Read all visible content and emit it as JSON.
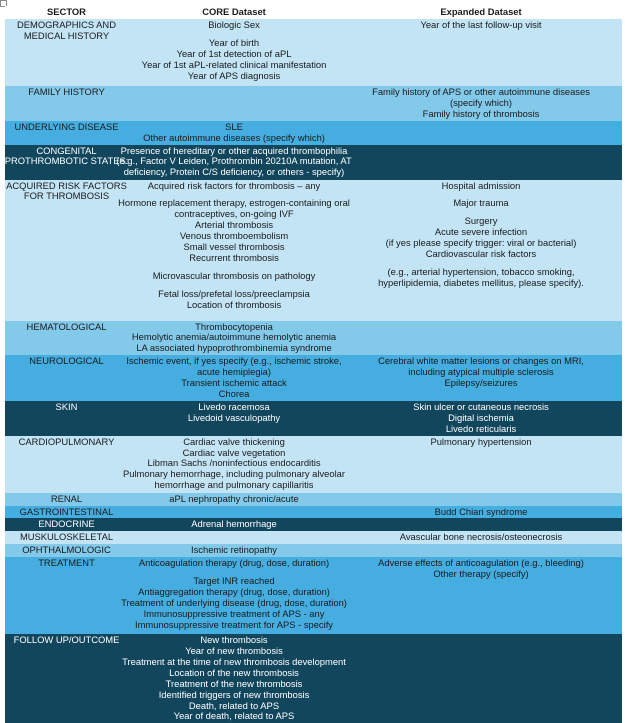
{
  "header": {
    "sector": "SECTOR",
    "core": "CORE Dataset",
    "expanded": "Expanded Dataset"
  },
  "colors": {
    "light": "#c2e4f5",
    "medium": "#82c9ea",
    "bright": "#45ade0",
    "dark": "#11465d"
  },
  "rows": [
    {
      "tone": "light",
      "sector": [
        "DEMOGRAPHICS AND",
        "MEDICAL HISTORY"
      ],
      "core": [
        [
          "Biologic Sex"
        ],
        [
          "Year of birth",
          "Year of 1st detection of aPL",
          "Year of 1st aPL-related clinical manifestation",
          "Year of APS diagnosis"
        ]
      ],
      "expanded": [
        [
          "Year of the last follow-up visit"
        ]
      ]
    },
    {
      "tone": "medium",
      "sector": [
        "FAMILY HISTORY"
      ],
      "core": [],
      "expanded": [
        [
          "Family history of APS or other autoimmune diseases",
          "(specify which)",
          "Family history of thrombosis"
        ]
      ]
    },
    {
      "tone": "bright",
      "sector": [
        "UNDERLYING DISEASE"
      ],
      "core": [
        [
          "SLE",
          "Other autoimmune diseases (specify which)"
        ]
      ],
      "expanded": []
    },
    {
      "tone": "dark",
      "sector": [
        "CONGENITAL",
        "PROTHROMBOTIC STATES:"
      ],
      "core": [
        [
          "Presence of hereditary or other acquired thrombophilia",
          "(e.g., Factor V Leiden, Prothrombin 20210A mutation, AT",
          "deficiency, Protein C/S deficiency, or others - specify)"
        ]
      ],
      "expanded": []
    },
    {
      "tone": "light",
      "sector": [
        "ACQUIRED RISK FACTORS",
        "FOR THROMBOSIS"
      ],
      "core": [
        [
          "Acquired risk factors for thrombosis – any"
        ],
        [
          "Hormone replacement therapy, estrogen-containing oral",
          "contraceptives, on-going IVF",
          "Arterial thrombosis",
          "Venous thromboembolism",
          "Small vessel thrombosis",
          "Recurrent thrombosis"
        ],
        [
          "Microvascular thrombosis on pathology"
        ],
        [
          "Fetal loss/prefetal loss/preeclampsia",
          "Location of thrombosis"
        ]
      ],
      "expanded": [
        [
          "Hospital admission"
        ],
        [
          "Major trauma"
        ],
        [
          "Surgery",
          "Acute severe infection",
          "(if yes please specify trigger: viral or bacterial)",
          "Cardiovascular risk factors"
        ],
        [
          "(e.g., arterial hypertension, tobacco smoking,",
          "hyperlipidemia, diabetes mellitus, please specify)."
        ]
      ]
    },
    {
      "tone": "medium",
      "sector": [
        "HEMATOLOGICAL"
      ],
      "core": [
        [
          "Thrombocytopenia",
          "Hemolytic anemia/autoimmune hemolytic anemia",
          "LA associated hypoprothrombinemia syndrome"
        ]
      ],
      "expanded": []
    },
    {
      "tone": "bright",
      "sector": [
        "NEUROLOGICAL"
      ],
      "core": [
        [
          "Ischemic event, if yes specify (e.g., ischemic stroke,",
          "acute hemiplegia)",
          "Transient ischemic attack",
          "Chorea"
        ]
      ],
      "expanded": [
        [
          "Cerebral white matter lesions or changes on MRI,",
          "including atypical multiple sclerosis",
          "Epilepsy/seizures"
        ]
      ]
    },
    {
      "tone": "dark",
      "sector": [
        "SKIN"
      ],
      "core": [
        [
          "Livedo racemosa",
          "Livedoid vasculopathy"
        ]
      ],
      "expanded": [
        [
          "Skin ulcer or cutaneous necrosis",
          "Digital ischemia",
          "Livedo reticularis"
        ]
      ]
    },
    {
      "tone": "light",
      "sector": [
        "CARDIOPULMONARY"
      ],
      "core": [
        [
          "Cardiac valve thickening",
          "Cardiac valve vegetation",
          "Libman Sachs /noninfectious endocarditis",
          "Pulmonary hemorrhage, including pulmonary alveolar",
          "hemorrhage and pulmonary capillaritis"
        ]
      ],
      "expanded": [
        [
          "Pulmonary hypertension"
        ]
      ]
    },
    {
      "tone": "medium",
      "sector": [
        "RENAL"
      ],
      "core": [
        [
          "aPL nephropathy chronic/acute"
        ]
      ],
      "expanded": []
    },
    {
      "tone": "bright",
      "sector": [
        "GASTROINTESTINAL"
      ],
      "core": [],
      "expanded": [
        [
          "Budd Chiari syndrome"
        ]
      ]
    },
    {
      "tone": "dark",
      "sector": [
        "ENDOCRINE"
      ],
      "core": [
        [
          "Adrenal hemorrhage"
        ]
      ],
      "expanded": []
    },
    {
      "tone": "light",
      "sector": [
        "MUSKULOSKELETAL"
      ],
      "core": [],
      "expanded": [
        [
          "Avascular bone necrosis/osteonecrosis"
        ]
      ]
    },
    {
      "tone": "medium",
      "sector": [
        "OPHTHALMOLOGIC"
      ],
      "core": [
        [
          "Ischemic retinopathy"
        ]
      ],
      "expanded": []
    },
    {
      "tone": "bright",
      "sector": [
        "TREATMENT"
      ],
      "core": [
        [
          "Anticoagulation therapy (drug, dose, duration)"
        ],
        [
          "Target INR reached",
          "Antiaggregation therapy (drug, dose, duration)",
          "Treatment of underlying disease (drug, dose, duration)",
          "Immunosuppressive treatment of APS - any",
          "Immunosuppressive treatment for APS - specify"
        ]
      ],
      "expanded": [
        [
          "Adverse effects of anticoagulation (e.g., bleeding)",
          "Other therapy (specify)"
        ]
      ]
    },
    {
      "tone": "dark",
      "sector": [
        "FOLLOW UP/OUTCOME"
      ],
      "core": [
        [
          "New thrombosis",
          "Year of new thrombosis",
          "Treatment at the time of new thrombosis development",
          "Location of the new thrombosis",
          "Treatment of the new thrombosis",
          "Identified triggers of new thrombosis",
          "Death, related to APS",
          "Year of death, related to APS"
        ]
      ],
      "expanded": []
    }
  ]
}
